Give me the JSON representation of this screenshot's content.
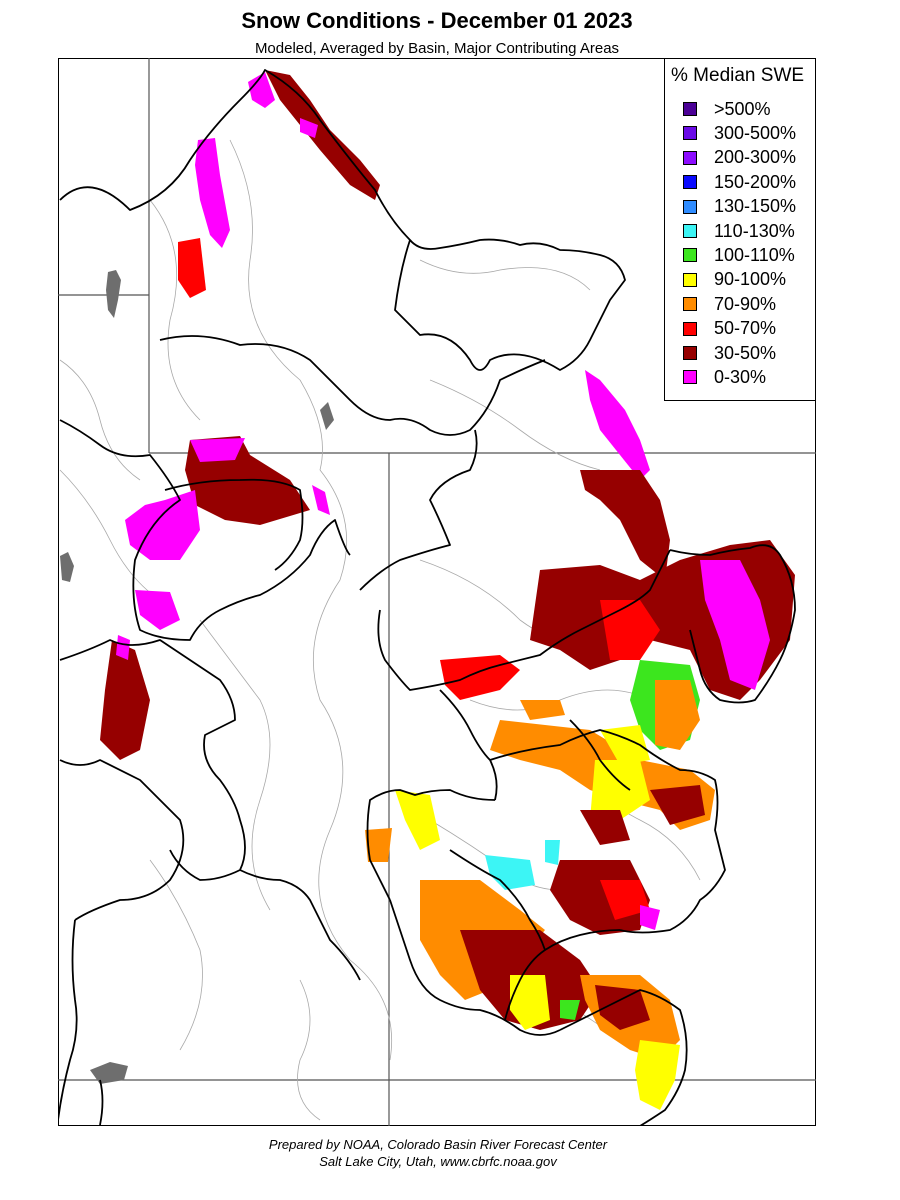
{
  "title": "Snow Conditions - December 01 2023",
  "subtitle": "Modeled, Averaged by Basin, Major Contributing Areas",
  "credit": {
    "line1": "Prepared by NOAA, Colorado Basin River Forecast Center",
    "line2": "Salt Lake City, Utah, www.cbrfc.noaa.gov"
  },
  "legend": {
    "title": "% Median SWE",
    "items": [
      {
        "label": ">500%",
        "color": "#4b0096"
      },
      {
        "label": "300-500%",
        "color": "#6a0ae6"
      },
      {
        "label": "200-300%",
        "color": "#8c0cff"
      },
      {
        "label": "150-200%",
        "color": "#0a0aff"
      },
      {
        "label": "130-150%",
        "color": "#2f8cff"
      },
      {
        "label": "110-130%",
        "color": "#3cf5f5"
      },
      {
        "label": "100-110%",
        "color": "#3ce61e"
      },
      {
        "label": "90-100%",
        "color": "#ffff00"
      },
      {
        "label": "70-90%",
        "color": "#ff8c00"
      },
      {
        "label": "50-70%",
        "color": "#ff0000"
      },
      {
        "label": "30-50%",
        "color": "#960000"
      },
      {
        "label": "0-30%",
        "color": "#ff00ff"
      }
    ]
  }
}
